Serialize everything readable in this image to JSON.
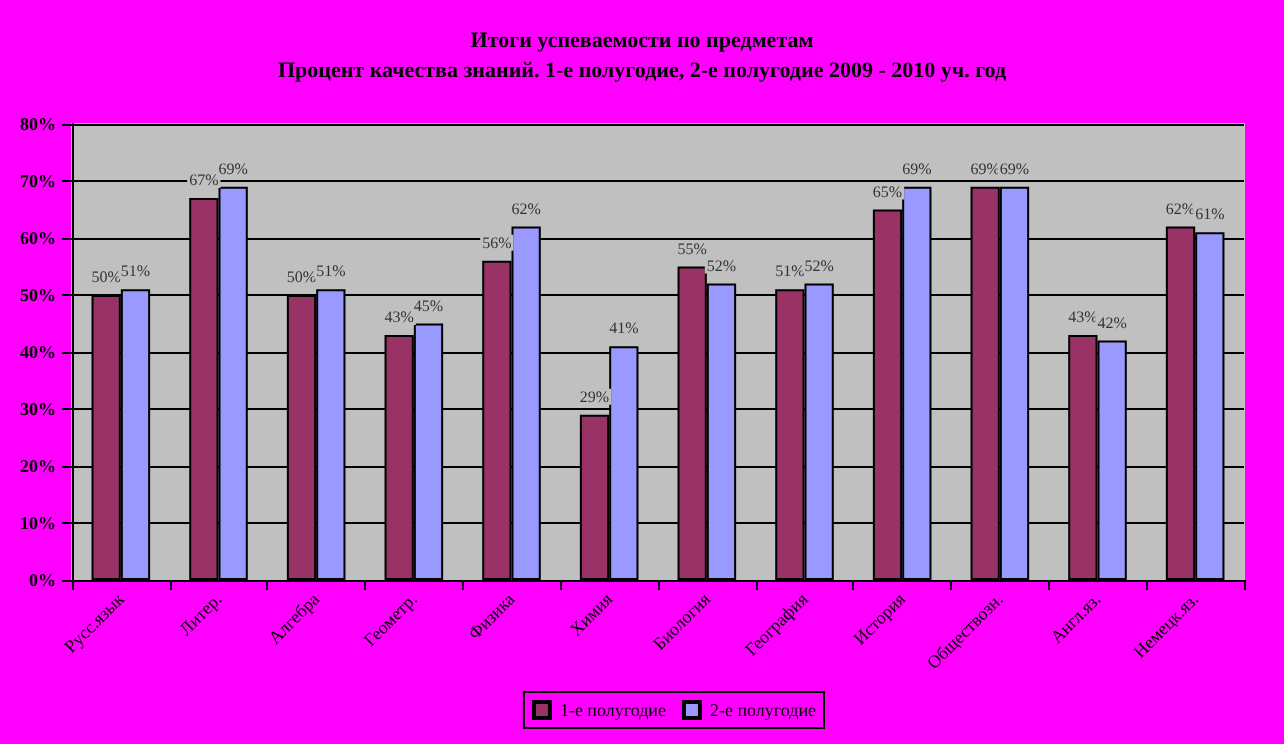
{
  "chart_data": {
    "type": "bar",
    "title": "Итоги успеваемости по предметам",
    "subtitle": "Процент качества знаний. 1-е полугодие, 2-е полугодие 2009 - 2010 уч. год",
    "categories": [
      "Русс.язык",
      "Литер.",
      "Алгебра",
      "Геометр.",
      "Физика",
      "Химия",
      "Биология",
      "География",
      "История",
      "Обществозн.",
      "Англ.яз.",
      "Немецк.яз."
    ],
    "series": [
      {
        "name": "1-е полугодие",
        "color": "#993366",
        "values": [
          50,
          67,
          50,
          43,
          56,
          29,
          55,
          51,
          65,
          69,
          43,
          62
        ],
        "value_labels": [
          "50%",
          "67%",
          "50%",
          "43%",
          "56%",
          "29%",
          "55%",
          "51%",
          "65%",
          "69%",
          "43%",
          "62%"
        ]
      },
      {
        "name": "2-е полугодие",
        "color": "#9999ff",
        "values": [
          51,
          69,
          51,
          45,
          62,
          41,
          52,
          52,
          69,
          69,
          42,
          61
        ],
        "value_labels": [
          "51%",
          "69%",
          "51%",
          "45%",
          "62%",
          "41%",
          "52%",
          "52%",
          "69%",
          "69%",
          "42%",
          "61%"
        ]
      }
    ],
    "ylim": [
      0,
      80
    ],
    "yticks": [
      {
        "value": 0,
        "label": "0%"
      },
      {
        "value": 10,
        "label": "10%"
      },
      {
        "value": 20,
        "label": "20%"
      },
      {
        "value": 30,
        "label": "30%"
      },
      {
        "value": 40,
        "label": "40%"
      },
      {
        "value": 50,
        "label": "50%"
      },
      {
        "value": 60,
        "label": "60%"
      },
      {
        "value": 70,
        "label": "70%"
      },
      {
        "value": 80,
        "label": "80%"
      }
    ],
    "grid": "y",
    "legend": "bottom right"
  }
}
